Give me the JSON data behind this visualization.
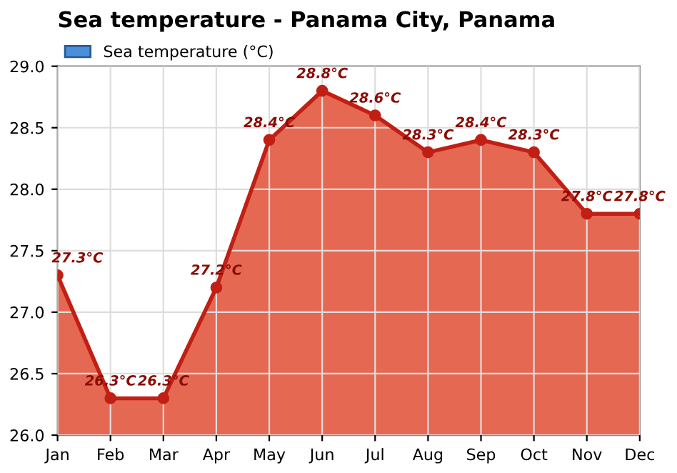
{
  "chart_data": {
    "type": "area",
    "title": "Sea temperature - Panama City, Panama",
    "categories": [
      "Jan",
      "Feb",
      "Mar",
      "Apr",
      "May",
      "Jun",
      "Jul",
      "Aug",
      "Sep",
      "Oct",
      "Nov",
      "Dec"
    ],
    "series": [
      {
        "name": "Sea temperature (°C)",
        "color": "#e4604a",
        "values": [
          27.3,
          26.3,
          26.3,
          27.2,
          28.4,
          28.8,
          28.6,
          28.3,
          28.4,
          28.3,
          27.8,
          27.8
        ],
        "value_labels": [
          "27.3°C",
          "26.3°C",
          "26.3°C",
          "27.2°C",
          "28.4°C",
          "28.8°C",
          "28.6°C",
          "28.3°C",
          "28.4°C",
          "28.3°C",
          "27.8°C",
          "27.8°C"
        ]
      }
    ],
    "ylim": [
      26.0,
      29.0
    ],
    "yticks": [
      {
        "value": 26.0,
        "label": "26.0"
      },
      {
        "value": 26.5,
        "label": "26.5"
      },
      {
        "value": 27.0,
        "label": "27.0"
      },
      {
        "value": 27.5,
        "label": "27.5"
      },
      {
        "value": 28.0,
        "label": "28.0"
      },
      {
        "value": 28.5,
        "label": "28.5"
      },
      {
        "value": 29.0,
        "label": "29.0"
      }
    ],
    "grid": true,
    "legend": "top left",
    "marker": "circle",
    "line_style": "solid"
  }
}
